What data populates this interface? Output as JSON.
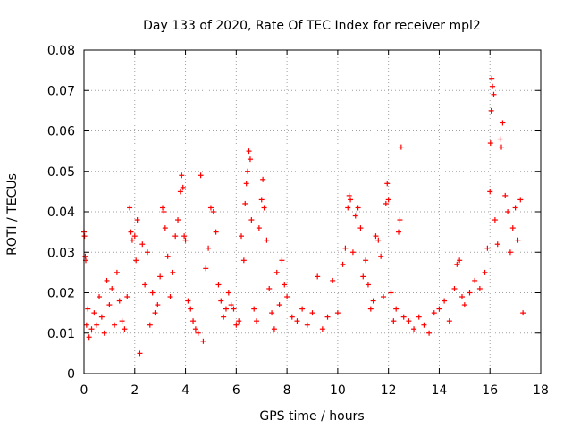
{
  "chart_data": {
    "type": "scatter",
    "title": "Day 133 of 2020, Rate Of TEC Index for receiver mpl2",
    "xlabel": "GPS time / hours",
    "ylabel": "ROTI / TECUs",
    "xlim": [
      0,
      18
    ],
    "ylim": [
      0,
      0.08
    ],
    "xticks": [
      0,
      2,
      4,
      6,
      8,
      10,
      12,
      14,
      16,
      18
    ],
    "xtick_labels": [
      "0",
      "2",
      "4",
      "6",
      "8",
      "10",
      "12",
      "14",
      "16",
      "18"
    ],
    "yticks": [
      0,
      0.01,
      0.02,
      0.03,
      0.04,
      0.05,
      0.06,
      0.07,
      0.08
    ],
    "ytick_labels": [
      "0",
      "0.01",
      "0.02",
      "0.03",
      "0.04",
      "0.05",
      "0.06",
      "0.07",
      "0.08"
    ],
    "grid": true,
    "marker": "+",
    "marker_color": "#ff0000",
    "series": [
      {
        "name": "ROTI",
        "points": [
          [
            0.0,
            0.035
          ],
          [
            0.02,
            0.034
          ],
          [
            0.05,
            0.029
          ],
          [
            0.07,
            0.028
          ],
          [
            0.1,
            0.012
          ],
          [
            0.15,
            0.016
          ],
          [
            0.2,
            0.009
          ],
          [
            0.3,
            0.011
          ],
          [
            0.4,
            0.015
          ],
          [
            0.5,
            0.012
          ],
          [
            0.6,
            0.019
          ],
          [
            0.7,
            0.014
          ],
          [
            0.8,
            0.01
          ],
          [
            0.9,
            0.023
          ],
          [
            1.0,
            0.017
          ],
          [
            1.1,
            0.021
          ],
          [
            1.2,
            0.012
          ],
          [
            1.3,
            0.025
          ],
          [
            1.4,
            0.018
          ],
          [
            1.5,
            0.013
          ],
          [
            1.6,
            0.011
          ],
          [
            1.7,
            0.019
          ],
          [
            1.8,
            0.041
          ],
          [
            1.85,
            0.035
          ],
          [
            1.9,
            0.033
          ],
          [
            2.0,
            0.034
          ],
          [
            2.05,
            0.028
          ],
          [
            2.1,
            0.038
          ],
          [
            2.2,
            0.005
          ],
          [
            2.3,
            0.032
          ],
          [
            2.4,
            0.022
          ],
          [
            2.5,
            0.03
          ],
          [
            2.6,
            0.012
          ],
          [
            2.7,
            0.02
          ],
          [
            2.8,
            0.015
          ],
          [
            2.9,
            0.017
          ],
          [
            3.0,
            0.024
          ],
          [
            3.1,
            0.041
          ],
          [
            3.15,
            0.04
          ],
          [
            3.2,
            0.036
          ],
          [
            3.3,
            0.029
          ],
          [
            3.4,
            0.019
          ],
          [
            3.5,
            0.025
          ],
          [
            3.6,
            0.034
          ],
          [
            3.7,
            0.038
          ],
          [
            3.8,
            0.045
          ],
          [
            3.85,
            0.049
          ],
          [
            3.9,
            0.046
          ],
          [
            3.95,
            0.034
          ],
          [
            4.0,
            0.033
          ],
          [
            4.1,
            0.018
          ],
          [
            4.2,
            0.016
          ],
          [
            4.3,
            0.013
          ],
          [
            4.4,
            0.011
          ],
          [
            4.5,
            0.01
          ],
          [
            4.6,
            0.049
          ],
          [
            4.7,
            0.008
          ],
          [
            4.8,
            0.026
          ],
          [
            4.9,
            0.031
          ],
          [
            5.0,
            0.041
          ],
          [
            5.1,
            0.04
          ],
          [
            5.2,
            0.035
          ],
          [
            5.3,
            0.022
          ],
          [
            5.4,
            0.018
          ],
          [
            5.5,
            0.014
          ],
          [
            5.6,
            0.016
          ],
          [
            5.7,
            0.02
          ],
          [
            5.8,
            0.017
          ],
          [
            5.9,
            0.016
          ],
          [
            6.0,
            0.012
          ],
          [
            6.1,
            0.013
          ],
          [
            6.2,
            0.034
          ],
          [
            6.3,
            0.028
          ],
          [
            6.35,
            0.042
          ],
          [
            6.4,
            0.047
          ],
          [
            6.45,
            0.05
          ],
          [
            6.5,
            0.055
          ],
          [
            6.55,
            0.053
          ],
          [
            6.6,
            0.038
          ],
          [
            6.7,
            0.016
          ],
          [
            6.8,
            0.013
          ],
          [
            6.9,
            0.036
          ],
          [
            7.0,
            0.043
          ],
          [
            7.05,
            0.048
          ],
          [
            7.1,
            0.041
          ],
          [
            7.2,
            0.033
          ],
          [
            7.3,
            0.021
          ],
          [
            7.4,
            0.015
          ],
          [
            7.5,
            0.011
          ],
          [
            7.6,
            0.025
          ],
          [
            7.7,
            0.017
          ],
          [
            7.8,
            0.028
          ],
          [
            7.9,
            0.022
          ],
          [
            8.0,
            0.019
          ],
          [
            8.2,
            0.014
          ],
          [
            8.4,
            0.013
          ],
          [
            8.6,
            0.016
          ],
          [
            8.8,
            0.012
          ],
          [
            9.0,
            0.015
          ],
          [
            9.2,
            0.024
          ],
          [
            9.4,
            0.011
          ],
          [
            9.6,
            0.014
          ],
          [
            9.8,
            0.023
          ],
          [
            10.0,
            0.015
          ],
          [
            10.2,
            0.027
          ],
          [
            10.3,
            0.031
          ],
          [
            10.4,
            0.041
          ],
          [
            10.45,
            0.044
          ],
          [
            10.5,
            0.043
          ],
          [
            10.6,
            0.03
          ],
          [
            10.7,
            0.039
          ],
          [
            10.8,
            0.041
          ],
          [
            10.9,
            0.036
          ],
          [
            11.0,
            0.024
          ],
          [
            11.1,
            0.028
          ],
          [
            11.2,
            0.022
          ],
          [
            11.3,
            0.016
          ],
          [
            11.4,
            0.018
          ],
          [
            11.5,
            0.034
          ],
          [
            11.6,
            0.033
          ],
          [
            11.7,
            0.029
          ],
          [
            11.8,
            0.019
          ],
          [
            11.9,
            0.042
          ],
          [
            11.95,
            0.047
          ],
          [
            12.0,
            0.043
          ],
          [
            12.1,
            0.02
          ],
          [
            12.2,
            0.013
          ],
          [
            12.3,
            0.016
          ],
          [
            12.4,
            0.035
          ],
          [
            12.45,
            0.038
          ],
          [
            12.5,
            0.056
          ],
          [
            12.6,
            0.014
          ],
          [
            12.8,
            0.013
          ],
          [
            13.0,
            0.011
          ],
          [
            13.2,
            0.014
          ],
          [
            13.4,
            0.012
          ],
          [
            13.6,
            0.01
          ],
          [
            13.8,
            0.015
          ],
          [
            14.0,
            0.016
          ],
          [
            14.2,
            0.018
          ],
          [
            14.4,
            0.013
          ],
          [
            14.6,
            0.021
          ],
          [
            14.7,
            0.027
          ],
          [
            14.8,
            0.028
          ],
          [
            14.9,
            0.019
          ],
          [
            15.0,
            0.017
          ],
          [
            15.2,
            0.02
          ],
          [
            15.4,
            0.023
          ],
          [
            15.6,
            0.021
          ],
          [
            15.8,
            0.025
          ],
          [
            15.9,
            0.031
          ],
          [
            16.0,
            0.045
          ],
          [
            16.02,
            0.057
          ],
          [
            16.05,
            0.065
          ],
          [
            16.07,
            0.073
          ],
          [
            16.1,
            0.071
          ],
          [
            16.15,
            0.069
          ],
          [
            16.2,
            0.038
          ],
          [
            16.3,
            0.032
          ],
          [
            16.4,
            0.058
          ],
          [
            16.45,
            0.056
          ],
          [
            16.5,
            0.062
          ],
          [
            16.6,
            0.044
          ],
          [
            16.7,
            0.04
          ],
          [
            16.8,
            0.03
          ],
          [
            16.9,
            0.036
          ],
          [
            17.0,
            0.041
          ],
          [
            17.1,
            0.033
          ],
          [
            17.2,
            0.043
          ],
          [
            17.3,
            0.015
          ]
        ]
      }
    ]
  }
}
